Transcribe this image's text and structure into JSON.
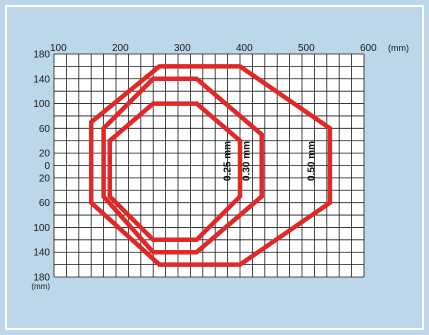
{
  "chart_data": {
    "type": "diagram",
    "x_axis": {
      "ticks": [
        "100",
        "200",
        "300",
        "400",
        "500",
        "600"
      ],
      "unit": "(mm)",
      "range": [
        100,
        600
      ],
      "grid_step": 20
    },
    "y_axis": {
      "ticks": [
        "180",
        "140",
        "100",
        "60",
        "20",
        "0",
        "20",
        "60",
        "100",
        "140",
        "180"
      ],
      "unit": "(mm)",
      "range": [
        180,
        -180
      ],
      "grid_step": 20
    },
    "grid": true,
    "series": [
      {
        "name": "0.25 mm",
        "color": "#e02828",
        "points": [
          [
            330,
            100
          ],
          [
            400,
            40
          ],
          [
            400,
            -50
          ],
          [
            330,
            -120
          ],
          [
            260,
            -120
          ],
          [
            190,
            -50
          ],
          [
            190,
            40
          ],
          [
            260,
            100
          ]
        ],
        "label_at": [
          385,
          -25
        ]
      },
      {
        "name": "0.30 mm",
        "color": "#e02828",
        "points": [
          [
            330,
            140
          ],
          [
            435,
            50
          ],
          [
            435,
            -50
          ],
          [
            330,
            -140
          ],
          [
            260,
            -140
          ],
          [
            180,
            -50
          ],
          [
            180,
            60
          ],
          [
            260,
            140
          ]
        ],
        "label_at": [
          415,
          -25
        ]
      },
      {
        "name": "0.50 mm",
        "color": "#e02828",
        "points": [
          [
            400,
            160
          ],
          [
            545,
            60
          ],
          [
            545,
            -60
          ],
          [
            400,
            -160
          ],
          [
            270,
            -160
          ],
          [
            160,
            -60
          ],
          [
            160,
            70
          ],
          [
            270,
            160
          ]
        ],
        "label_at": [
          520,
          -25
        ]
      }
    ],
    "colors": {
      "background": "#bcd6ea",
      "plot_background": "#ffffff",
      "grid": "#1a1a1a",
      "outline": "#e02828"
    }
  }
}
